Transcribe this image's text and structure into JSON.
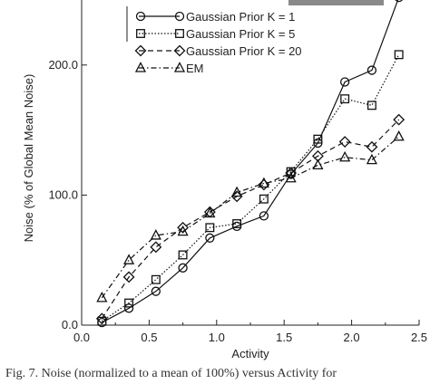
{
  "chart_data": {
    "type": "line",
    "xlabel": "Activity",
    "ylabel": "Noise (% of Global Mean Noise)",
    "xlim": [
      0.0,
      2.5
    ],
    "ylim": [
      0.0,
      250.0
    ],
    "xticks": [
      "0.0",
      "0.5",
      "1.0",
      "1.5",
      "2.0",
      "2.5"
    ],
    "yticks": [
      "0.0",
      "100.0",
      "200.0"
    ],
    "grid": false,
    "legend_position": "top-left",
    "series": [
      {
        "name": "Gaussian Prior K = 1",
        "marker": "circle",
        "dash": "solid",
        "x": [
          0.15,
          0.35,
          0.55,
          0.75,
          0.95,
          1.15,
          1.35,
          1.55,
          1.75,
          1.95,
          2.15,
          2.35
        ],
        "y": [
          2,
          13,
          26,
          44,
          67,
          76,
          84,
          116,
          140,
          187,
          196,
          252
        ]
      },
      {
        "name": "Gaussian Prior K = 5",
        "marker": "square",
        "dash": "dotted",
        "x": [
          0.15,
          0.35,
          0.55,
          0.75,
          0.95,
          1.15,
          1.35,
          1.55,
          1.75,
          1.95,
          2.15,
          2.35
        ],
        "y": [
          3,
          17,
          35,
          54,
          75,
          78,
          97,
          118,
          143,
          174,
          169,
          208
        ]
      },
      {
        "name": "Gaussian Prior K = 20",
        "marker": "diamond",
        "dash": "dashed",
        "x": [
          0.15,
          0.35,
          0.55,
          0.75,
          0.95,
          1.15,
          1.35,
          1.55,
          1.75,
          1.95,
          2.15,
          2.35
        ],
        "y": [
          5,
          37,
          60,
          75,
          87,
          99,
          108,
          117,
          130,
          141,
          137,
          158
        ]
      },
      {
        "name": "EM",
        "marker": "triangle",
        "dash": "dashdot",
        "x": [
          0.15,
          0.35,
          0.55,
          0.75,
          0.95,
          1.15,
          1.35,
          1.55,
          1.75,
          1.95,
          2.15,
          2.35
        ],
        "y": [
          21,
          50,
          69,
          72,
          86,
          102,
          109,
          113,
          123,
          129,
          127,
          145
        ]
      }
    ]
  },
  "caption": "Fig. 7.  Noise (normalized to a mean of 100%)  versus  Activity for"
}
